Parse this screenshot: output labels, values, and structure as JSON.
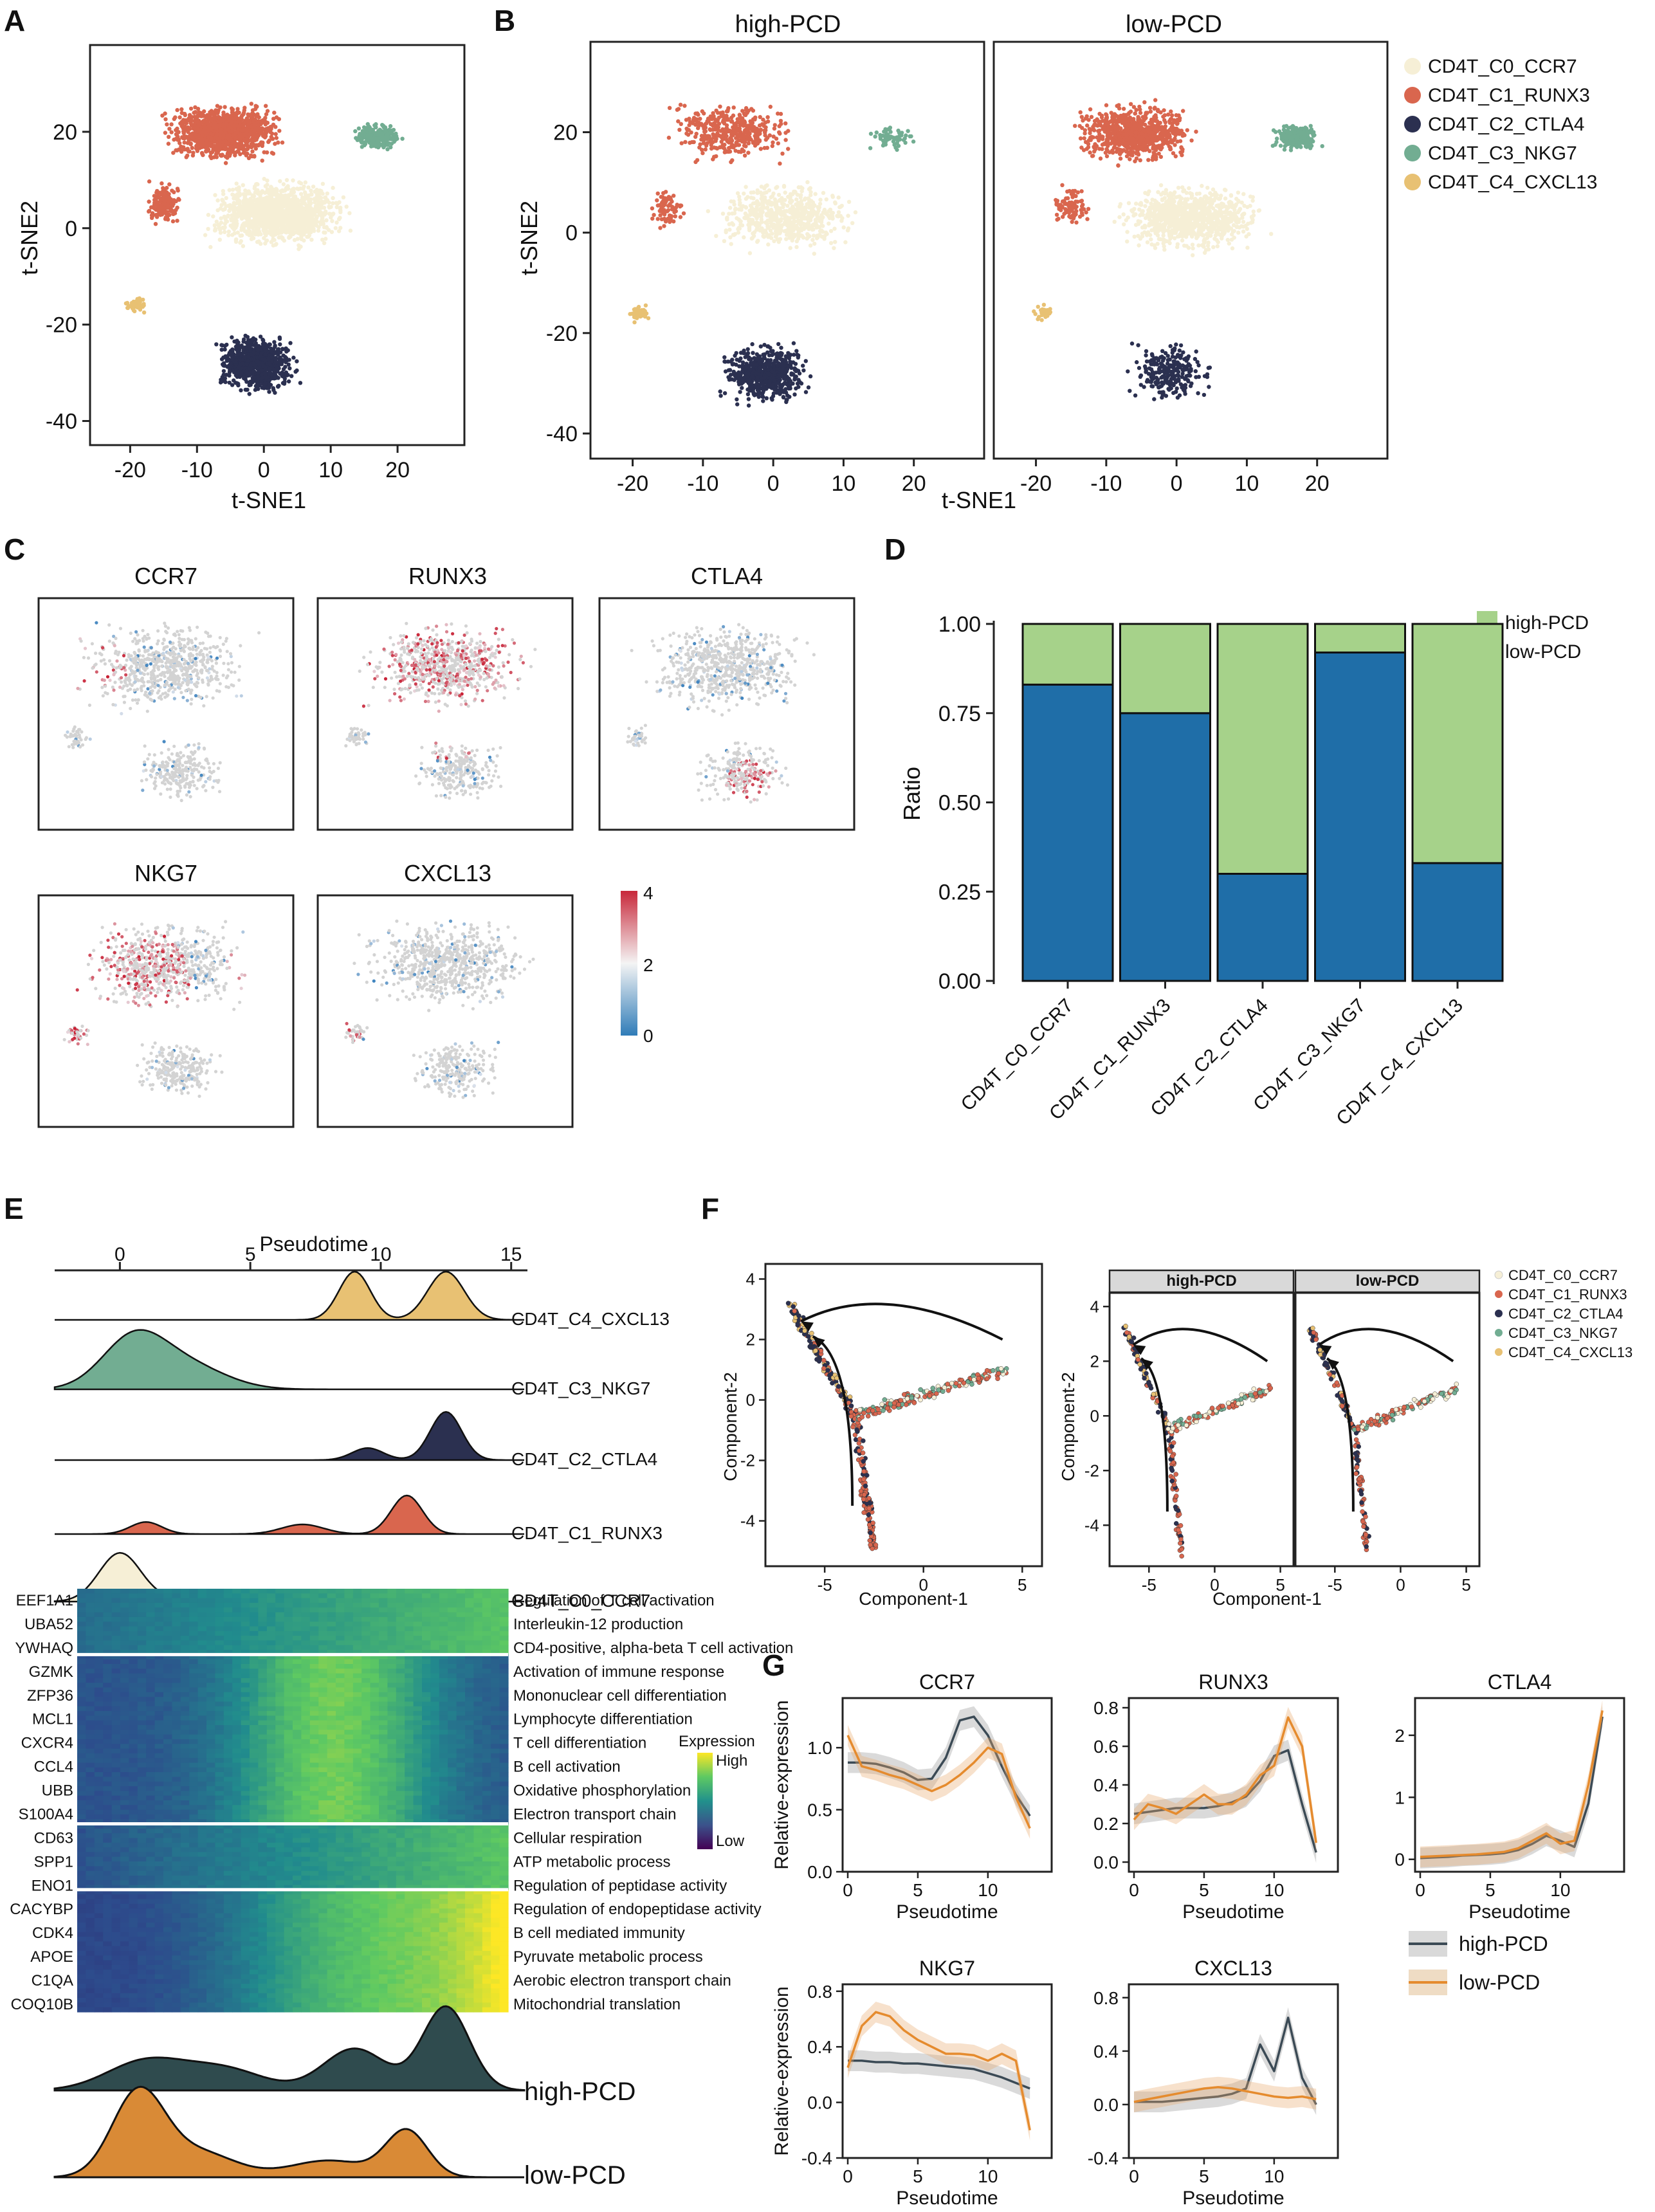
{
  "colors": {
    "c0": "#f6efd6",
    "c1": "#d9664e",
    "c2": "#2b3050",
    "c3": "#72ad92",
    "c4": "#e8c173",
    "high": "#a6d28a",
    "low": "#1f6ea8",
    "curveHigh": "#3b4a55",
    "curveLow": "#e58b2e"
  },
  "panelA": {
    "letter": "A",
    "xlabel": "t-SNE1",
    "ylabel": "t-SNE2",
    "xticks": [
      "-20",
      "-10",
      "0",
      "10",
      "20"
    ],
    "yticks": [
      "20",
      "0",
      "-20",
      "-40"
    ]
  },
  "panelB": {
    "letter": "B",
    "titles": [
      "high-PCD",
      "low-PCD"
    ],
    "xlabel": "t-SNE1",
    "ylabel": "t-SNE2",
    "xticks": [
      "-20",
      "-10",
      "0",
      "10",
      "20"
    ],
    "yticks": [
      "20",
      "0",
      "-20",
      "-40"
    ],
    "legend": [
      "CD4T_C0_CCR7",
      "CD4T_C1_RUNX3",
      "CD4T_C2_CTLA4",
      "CD4T_C3_NKG7",
      "CD4T_C4_CXCL13"
    ]
  },
  "panelC": {
    "letter": "C",
    "genes": [
      "CCR7",
      "RUNX3",
      "CTLA4",
      "NKG7",
      "CXCL13"
    ],
    "scale": [
      "4",
      "2",
      "0"
    ]
  },
  "panelE": {
    "letter": "E",
    "axisTitle": "Pseudotime",
    "ticks": [
      "0",
      "5",
      "10",
      "15"
    ],
    "ridges": [
      "CD4T_C4_CXCL13",
      "CD4T_C3_NKG7",
      "CD4T_C2_CTLA4",
      "CD4T_C1_RUNX3",
      "CD4T_C0_CCR7"
    ],
    "genes": [
      "EEF1A1",
      "UBA52",
      "YWHAQ",
      "GZMK",
      "ZFP36",
      "MCL1",
      "CXCR4",
      "CCL4",
      "UBB",
      "S100A4",
      "CD63",
      "SPP1",
      "ENO1",
      "CACYBP",
      "CDK4",
      "APOE",
      "C1QA",
      "COQ10B"
    ],
    "terms": [
      "Regulation of T cell activation",
      "Interleukin-12 production",
      "CD4-positive, alpha-beta T cell activation",
      "Activation of immune response",
      "Mononuclear cell differentiation",
      "Lymphocyte differentiation",
      "T cell differentiation",
      "B cell activation",
      "Oxidative phosphorylation",
      "Electron transport chain",
      "Cellular respiration",
      "ATP metabolic process",
      "Regulation of peptidase activity",
      "Regulation of endopeptidase activity",
      "B cell mediated immunity",
      "Pyruvate metabolic process",
      "Aerobic electron transport chain",
      "Mitochondrial translation"
    ],
    "exprTitle": "Expression",
    "exprHigh": "High",
    "exprLow": "Low",
    "densityLabels": [
      "high-PCD",
      "low-PCD"
    ]
  },
  "panelF": {
    "letter": "F",
    "xlabel": "Component-1",
    "ylabel": "Component-2",
    "facets": [
      "high-PCD",
      "low-PCD"
    ],
    "xticks": [
      "-5",
      "0",
      "5"
    ],
    "yticks": [
      "4",
      "2",
      "0",
      "-2",
      "-4"
    ],
    "legend": [
      "CD4T_C0_CCR7",
      "CD4T_C1_RUNX3",
      "CD4T_C2_CTLA4",
      "CD4T_C3_NKG7",
      "CD4T_C4_CXCL13"
    ]
  },
  "panelG": {
    "letter": "G",
    "xlabel": "Pseudotime",
    "ylabel": "Relative-expression",
    "legend": [
      "high-PCD",
      "low-PCD"
    ]
  },
  "chart_data": [
    {
      "type": "bar",
      "panel": "D",
      "stacked": true,
      "title": "",
      "xlabel": "",
      "ylabel": "Ratio",
      "ylim": [
        0,
        1
      ],
      "yticks": [
        "0.00",
        "0.25",
        "0.50",
        "0.75",
        "1.00"
      ],
      "categories": [
        "CD4T_C0_CCR7",
        "CD4T_C1_RUNX3",
        "CD4T_C2_CTLA4",
        "CD4T_C3_NKG7",
        "CD4T_C4_CXCL13"
      ],
      "series": [
        {
          "name": "low-PCD",
          "values": [
            0.83,
            0.75,
            0.3,
            0.92,
            0.33
          ]
        },
        {
          "name": "high-PCD",
          "values": [
            0.17,
            0.25,
            0.7,
            0.08,
            0.67
          ]
        }
      ]
    },
    {
      "type": "line",
      "panel": "G",
      "title": "CCR7",
      "xlabel": "Pseudotime",
      "ylabel": "Relative-expression",
      "xlim": [
        0,
        14
      ],
      "ylim": [
        0,
        1.4
      ],
      "xticks": [
        "0",
        "5",
        "10"
      ],
      "yticks": [
        "0.0",
        "0.5",
        "1.0"
      ],
      "x": [
        0,
        1,
        2,
        3,
        4,
        5,
        6,
        7,
        8,
        9,
        10,
        11,
        12,
        13
      ],
      "series": [
        {
          "name": "high-PCD",
          "values": [
            0.88,
            0.88,
            0.87,
            0.84,
            0.8,
            0.74,
            0.75,
            0.92,
            1.22,
            1.25,
            1.1,
            0.85,
            0.62,
            0.45
          ]
        },
        {
          "name": "low-PCD",
          "values": [
            1.1,
            0.85,
            0.82,
            0.78,
            0.75,
            0.7,
            0.65,
            0.7,
            0.78,
            0.88,
            1.0,
            0.95,
            0.6,
            0.35
          ]
        }
      ]
    },
    {
      "type": "line",
      "panel": "G",
      "title": "RUNX3",
      "xlabel": "Pseudotime",
      "ylabel": "",
      "xlim": [
        0,
        14
      ],
      "ylim": [
        -0.05,
        0.85
      ],
      "xticks": [
        "0",
        "5",
        "10"
      ],
      "yticks": [
        "0.0",
        "0.2",
        "0.4",
        "0.6",
        "0.8"
      ],
      "x": [
        0,
        1,
        2,
        3,
        4,
        5,
        6,
        7,
        8,
        9,
        10,
        11,
        12,
        13
      ],
      "series": [
        {
          "name": "high-PCD",
          "values": [
            0.25,
            0.26,
            0.27,
            0.28,
            0.28,
            0.28,
            0.29,
            0.31,
            0.34,
            0.42,
            0.55,
            0.58,
            0.3,
            0.05
          ]
        },
        {
          "name": "low-PCD",
          "values": [
            0.22,
            0.3,
            0.28,
            0.25,
            0.3,
            0.35,
            0.3,
            0.3,
            0.35,
            0.45,
            0.5,
            0.75,
            0.6,
            0.1
          ]
        }
      ]
    },
    {
      "type": "line",
      "panel": "G",
      "title": "CTLA4",
      "xlabel": "Pseudotime",
      "ylabel": "",
      "xlim": [
        0,
        14
      ],
      "ylim": [
        -0.2,
        2.6
      ],
      "xticks": [
        "0",
        "5",
        "10"
      ],
      "yticks": [
        "0",
        "1",
        "2"
      ],
      "x": [
        0,
        1,
        2,
        3,
        4,
        5,
        6,
        7,
        8,
        9,
        10,
        11,
        12,
        13
      ],
      "series": [
        {
          "name": "high-PCD",
          "values": [
            0.02,
            0.03,
            0.04,
            0.06,
            0.07,
            0.08,
            0.1,
            0.15,
            0.25,
            0.38,
            0.3,
            0.2,
            0.9,
            2.3
          ]
        },
        {
          "name": "low-PCD",
          "values": [
            0.04,
            0.05,
            0.06,
            0.07,
            0.08,
            0.1,
            0.12,
            0.18,
            0.3,
            0.42,
            0.25,
            0.3,
            1.2,
            2.4
          ]
        }
      ]
    },
    {
      "type": "line",
      "panel": "G",
      "title": "NKG7",
      "xlabel": "Pseudotime",
      "ylabel": "Relative-expression",
      "xlim": [
        0,
        14
      ],
      "ylim": [
        -0.4,
        0.85
      ],
      "xticks": [
        "0",
        "5",
        "10"
      ],
      "yticks": [
        "-0.4",
        "0.0",
        "0.4",
        "0.8"
      ],
      "x": [
        0,
        1,
        2,
        3,
        4,
        5,
        6,
        7,
        8,
        9,
        10,
        11,
        12,
        13
      ],
      "series": [
        {
          "name": "high-PCD",
          "values": [
            0.3,
            0.3,
            0.29,
            0.29,
            0.28,
            0.28,
            0.27,
            0.26,
            0.25,
            0.24,
            0.21,
            0.18,
            0.14,
            0.1
          ]
        },
        {
          "name": "low-PCD",
          "values": [
            0.25,
            0.55,
            0.65,
            0.62,
            0.52,
            0.45,
            0.4,
            0.35,
            0.35,
            0.34,
            0.3,
            0.35,
            0.3,
            -0.2
          ]
        }
      ]
    },
    {
      "type": "line",
      "panel": "G",
      "title": "CXCL13",
      "xlabel": "Pseudotime",
      "ylabel": "",
      "xlim": [
        0,
        14
      ],
      "ylim": [
        -0.4,
        0.9
      ],
      "xticks": [
        "0",
        "5",
        "10"
      ],
      "yticks": [
        "-0.4",
        "0.0",
        "0.4",
        "0.8"
      ],
      "x": [
        0,
        1,
        2,
        3,
        4,
        5,
        6,
        7,
        8,
        9,
        10,
        11,
        12,
        13
      ],
      "series": [
        {
          "name": "high-PCD",
          "values": [
            0.02,
            0.02,
            0.02,
            0.03,
            0.04,
            0.05,
            0.06,
            0.08,
            0.12,
            0.45,
            0.25,
            0.65,
            0.2,
            0.0
          ]
        },
        {
          "name": "low-PCD",
          "values": [
            0.02,
            0.04,
            0.06,
            0.08,
            0.1,
            0.12,
            0.13,
            0.12,
            0.1,
            0.08,
            0.06,
            0.05,
            0.06,
            0.04
          ]
        }
      ]
    }
  ]
}
